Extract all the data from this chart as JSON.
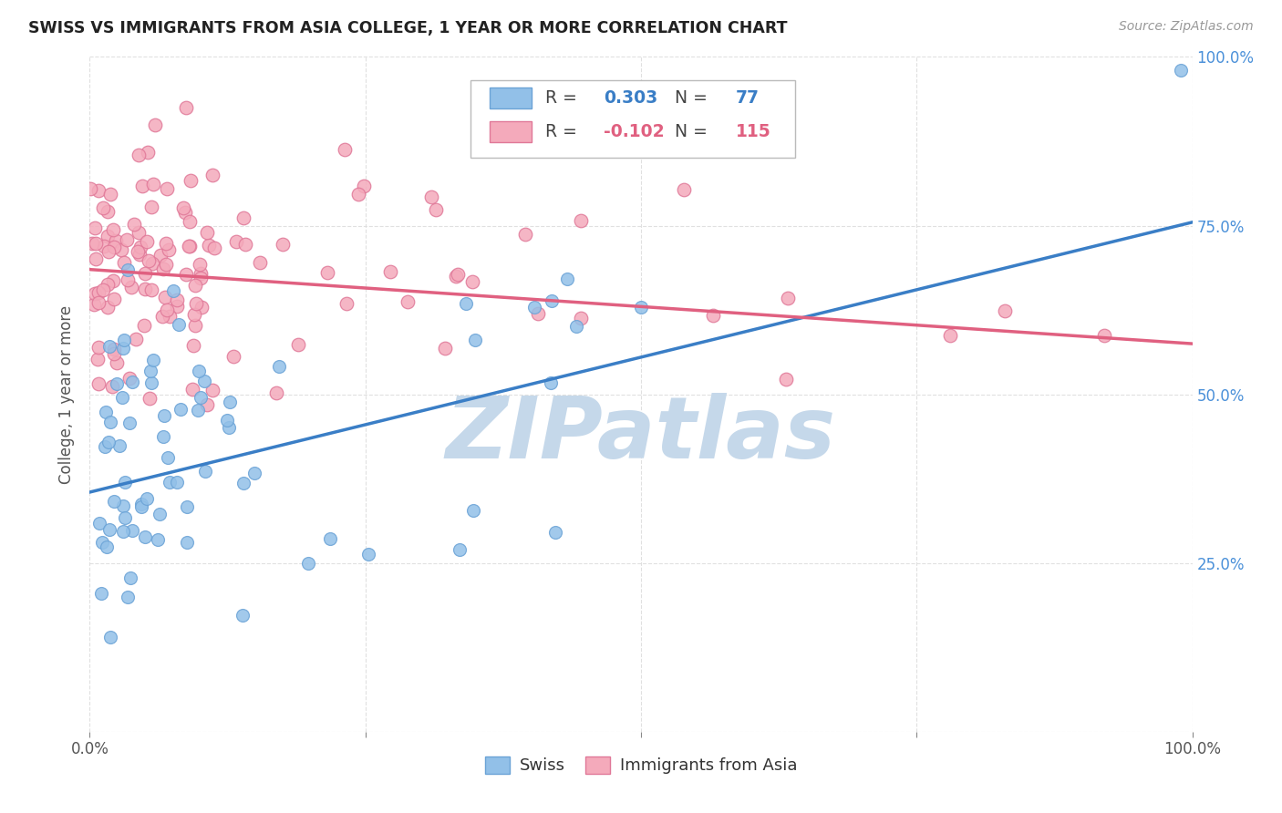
{
  "title": "SWISS VS IMMIGRANTS FROM ASIA COLLEGE, 1 YEAR OR MORE CORRELATION CHART",
  "source": "Source: ZipAtlas.com",
  "ylabel": "College, 1 year or more",
  "xlim": [
    0.0,
    1.0
  ],
  "ylim": [
    0.0,
    1.0
  ],
  "legend_swiss_r": "0.303",
  "legend_swiss_n": "77",
  "legend_asia_r": "-0.102",
  "legend_asia_n": "115",
  "swiss_color": "#92C0E8",
  "swiss_edge_color": "#6BA3D6",
  "asia_color": "#F4AABB",
  "asia_edge_color": "#E07898",
  "swiss_line_color": "#3A7EC6",
  "asia_line_color": "#E06080",
  "watermark_color": "#C5D8EA",
  "background_color": "#FFFFFF",
  "grid_color": "#DDDDDD",
  "right_label_color": "#4A90D9",
  "swiss_line_start_y": 0.355,
  "swiss_line_end_y": 0.755,
  "asia_line_start_y": 0.685,
  "asia_line_end_y": 0.575
}
